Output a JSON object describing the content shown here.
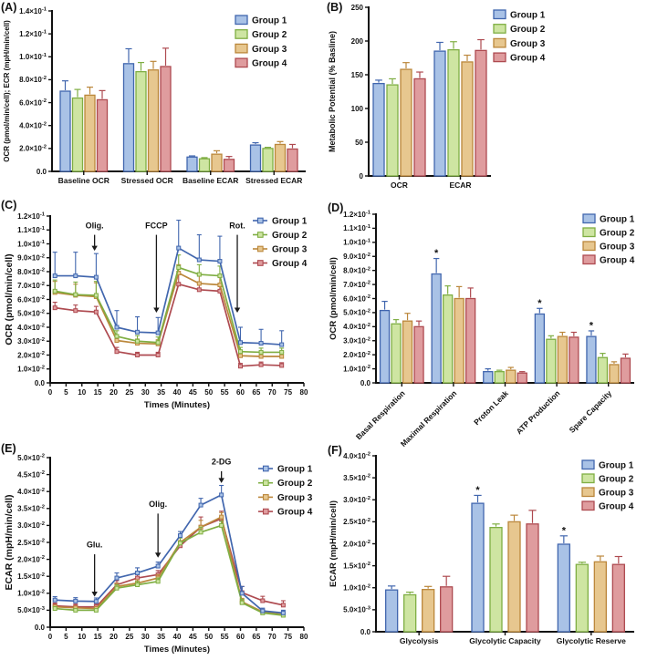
{
  "groups": [
    {
      "label": "Group 1",
      "fill": "#a9c2e6",
      "stroke": "#4166ae",
      "text": "#2746a8"
    },
    {
      "label": "Group 2",
      "fill": "#cee5a2",
      "stroke": "#7fae43",
      "text": "#6ba32c"
    },
    {
      "label": "Group 3",
      "fill": "#e7c78f",
      "stroke": "#bb873b",
      "text": "#b97a1e"
    },
    {
      "label": "Group 4",
      "fill": "#df9c9e",
      "stroke": "#ae4a50",
      "text": "#ac3940"
    }
  ],
  "chart_data": [
    {
      "panel": "(A)",
      "type": "bar",
      "ylabel": "OCR (pmol/min/cell); ECR (mpH/min/cell)",
      "ylim": [
        0,
        0.14
      ],
      "yticks": [
        0,
        0.02,
        0.04,
        0.06,
        0.08,
        0.1,
        0.12,
        0.14
      ],
      "ytick_labels": [
        "0.0",
        "2.0×10^-2",
        "4.0×10^-2",
        "6.0×10^-2",
        "8.0×10^-2",
        "1.0×10^-1",
        "1.2×10^-1",
        "1.4×10^-1"
      ],
      "categories": [
        "Baseline OCR",
        "Stressed OCR",
        "Baseline ECAR",
        "Stressed ECAR"
      ],
      "series": [
        {
          "name": "Group 1",
          "values": [
            0.07,
            0.094,
            0.0125,
            0.023
          ],
          "errors": [
            0.009,
            0.013,
            0.001,
            0.002
          ]
        },
        {
          "name": "Group 2",
          "values": [
            0.064,
            0.087,
            0.011,
            0.02
          ],
          "errors": [
            0.0075,
            0.008,
            0.001,
            0.001
          ]
        },
        {
          "name": "Group 3",
          "values": [
            0.0665,
            0.0885,
            0.015,
            0.0235
          ],
          "errors": [
            0.007,
            0.0075,
            0.003,
            0.0025
          ]
        },
        {
          "name": "Group 4",
          "values": [
            0.0625,
            0.0915,
            0.0105,
            0.0195
          ],
          "errors": [
            0.008,
            0.016,
            0.0025,
            0.004
          ]
        }
      ],
      "stars": []
    },
    {
      "panel": "(B)",
      "type": "bar",
      "ylabel": "Metabolic Potential (% Basline)",
      "ylim": [
        0,
        250
      ],
      "yticks": [
        0,
        50,
        100,
        150,
        200,
        250
      ],
      "ytick_labels": [
        "0",
        "50",
        "100",
        "150",
        "200",
        "250"
      ],
      "categories": [
        "OCR",
        "ECAR"
      ],
      "series": [
        {
          "name": "Group 1",
          "values": [
            137,
            185
          ],
          "errors": [
            5,
            13
          ]
        },
        {
          "name": "Group 2",
          "values": [
            135,
            187
          ],
          "errors": [
            9,
            12
          ]
        },
        {
          "name": "Group 3",
          "values": [
            158,
            169
          ],
          "errors": [
            10,
            10
          ]
        },
        {
          "name": "Group 4",
          "values": [
            144,
            186
          ],
          "errors": [
            10,
            16
          ]
        }
      ],
      "stars": []
    },
    {
      "panel": "(C)",
      "type": "line",
      "ylabel": "OCR (pmol/min/cell)",
      "xlabel": "Times (Minutes)",
      "ylim": [
        0,
        0.12
      ],
      "xlim": [
        0,
        80
      ],
      "yticks": [
        0,
        0.01,
        0.02,
        0.03,
        0.04,
        0.05,
        0.06,
        0.07,
        0.08,
        0.09,
        0.1,
        0.11,
        0.12
      ],
      "ytick_labels": [
        "0.0",
        "1.0×10^-2",
        "2.0×10^-2",
        "3.0×10^-2",
        "4.0×10^-2",
        "5.0×10^-2",
        "6.0×10^-2",
        "7.0×10^-2",
        "8.0×10^-2",
        "9.0×10^-2",
        "1.0×10^-1",
        "1.1×10^-1",
        "1.2×10^-1"
      ],
      "xticks": [
        0,
        5,
        10,
        15,
        20,
        25,
        30,
        35,
        40,
        45,
        50,
        55,
        60,
        65,
        70,
        75,
        80
      ],
      "x": [
        1.5,
        8,
        14.5,
        21,
        27.5,
        34,
        40.5,
        47,
        53.5,
        60,
        66.5,
        73
      ],
      "series": [
        {
          "name": "Group 1",
          "values": [
            0.077,
            0.077,
            0.076,
            0.04,
            0.0365,
            0.036,
            0.097,
            0.0885,
            0.0875,
            0.029,
            0.0285,
            0.0275
          ],
          "errors": [
            0.017,
            0.017,
            0.017,
            0.012,
            0.011,
            0.011,
            0.02,
            0.018,
            0.018,
            0.011,
            0.01,
            0.01
          ]
        },
        {
          "name": "Group 2",
          "values": [
            0.066,
            0.0635,
            0.063,
            0.0335,
            0.03,
            0.029,
            0.083,
            0.078,
            0.077,
            0.0225,
            0.022,
            0.022
          ],
          "errors": [
            0.008,
            0.009,
            0.01,
            0.004,
            0.004,
            0.004,
            0.009,
            0.007,
            0.007,
            0.003,
            0.003,
            0.003
          ]
        },
        {
          "name": "Group 3",
          "values": [
            0.065,
            0.063,
            0.062,
            0.0305,
            0.0285,
            0.028,
            0.079,
            0.0715,
            0.0705,
            0.0195,
            0.019,
            0.019
          ],
          "errors": [
            0.008,
            0.008,
            0.01,
            0.003,
            0.003,
            0.003,
            0.006,
            0.006,
            0.006,
            0.003,
            0.003,
            0.003
          ]
        },
        {
          "name": "Group 4",
          "values": [
            0.054,
            0.052,
            0.051,
            0.0225,
            0.02,
            0.02,
            0.071,
            0.067,
            0.066,
            0.012,
            0.013,
            0.0125
          ],
          "errors": [
            0.004,
            0.004,
            0.004,
            0.003,
            0.002,
            0.002,
            0.007,
            0.005,
            0.005,
            0.002,
            0.002,
            0.002
          ]
        }
      ],
      "annotations": [
        {
          "label": "Olig.",
          "x": 14,
          "label_y": 0.111,
          "arrow_from": 0.1065,
          "arrow_to": 0.095
        },
        {
          "label": "FCCP",
          "x": 33.5,
          "label_y": 0.111,
          "arrow_from": 0.1065,
          "arrow_to": 0.0505
        },
        {
          "label": "Rot.",
          "x": 59,
          "label_y": 0.111,
          "arrow_from": 0.1065,
          "arrow_to": 0.0505
        }
      ]
    },
    {
      "panel": "(D)",
      "type": "bar",
      "ylabel": "OCR (pmol/min/cell)",
      "ylim": [
        0,
        0.12
      ],
      "yticks": [
        0,
        0.01,
        0.02,
        0.03,
        0.04,
        0.05,
        0.06,
        0.07,
        0.08,
        0.09,
        0.1,
        0.11,
        0.12
      ],
      "ytick_labels": [
        "0.0",
        "1.0×10^-2",
        "2.0×10^-2",
        "3.0×10^-2",
        "4.0×10^-2",
        "5.0×10^-2",
        "6.0×10^-2",
        "7.0×10^-2",
        "8.0×10^-2",
        "9.0×10^-2",
        "1.0×10^-1",
        "1.1×10^-1",
        "1.2×10^-1"
      ],
      "categories": [
        "Basal Respiration",
        "Maximal Respiration",
        "Proton Leak",
        "ATP Production",
        "Spare Capacity"
      ],
      "series": [
        {
          "name": "Group 1",
          "values": [
            0.0515,
            0.0775,
            0.008,
            0.049,
            0.033
          ],
          "errors": [
            0.0065,
            0.011,
            0.002,
            0.004,
            0.004
          ]
        },
        {
          "name": "Group 2",
          "values": [
            0.042,
            0.0625,
            0.008,
            0.031,
            0.018
          ],
          "errors": [
            0.003,
            0.0065,
            0.001,
            0.0025,
            0.003
          ]
        },
        {
          "name": "Group 3",
          "values": [
            0.044,
            0.06,
            0.009,
            0.033,
            0.013
          ],
          "errors": [
            0.0055,
            0.0085,
            0.002,
            0.003,
            0.002
          ]
        },
        {
          "name": "Group 4",
          "values": [
            0.04,
            0.06,
            0.007,
            0.0325,
            0.0175
          ],
          "errors": [
            0.004,
            0.0075,
            0.001,
            0.0035,
            0.003
          ]
        }
      ],
      "stars": [
        {
          "category": 1,
          "series": 0,
          "symbol": "*"
        },
        {
          "category": 3,
          "series": 0,
          "symbol": "*"
        },
        {
          "category": 4,
          "series": 0,
          "symbol": "*"
        }
      ]
    },
    {
      "panel": "(E)",
      "type": "line",
      "ylabel": "ECAR (mpH/min/cell)",
      "xlabel": "Times (Minutes)",
      "ylim": [
        0,
        0.05
      ],
      "xlim": [
        0,
        80
      ],
      "yticks": [
        0,
        0.005,
        0.01,
        0.015,
        0.02,
        0.025,
        0.03,
        0.035,
        0.04,
        0.045,
        0.05
      ],
      "ytick_labels": [
        "0.0",
        "5.0×10^-3",
        "1.0×10^-2",
        "1.5×10^-2",
        "2.0×10^-2",
        "2.5×10^-2",
        "3.0×10^-2",
        "3.5×10^-2",
        "4.0×10^-2",
        "4.5×10^-2",
        "5.0×10^-2"
      ],
      "xticks": [
        0,
        5,
        10,
        15,
        20,
        25,
        30,
        35,
        40,
        45,
        50,
        55,
        60,
        65,
        70,
        75,
        80
      ],
      "x": [
        1.5,
        8,
        14.5,
        21,
        27.5,
        34,
        41,
        47.5,
        54,
        60.5,
        67,
        73.5
      ],
      "series": [
        {
          "name": "Group 1",
          "values": [
            0.008,
            0.0077,
            0.0076,
            0.0145,
            0.016,
            0.018,
            0.027,
            0.036,
            0.039,
            0.01,
            0.0048,
            0.0042
          ],
          "errors": [
            0.001,
            0.001,
            0.001,
            0.0015,
            0.0015,
            0.0012,
            0.0012,
            0.002,
            0.0028,
            0.002,
            0.0008,
            0.0008
          ]
        },
        {
          "name": "Group 2",
          "values": [
            0.0055,
            0.005,
            0.005,
            0.0115,
            0.0125,
            0.0135,
            0.0248,
            0.028,
            0.03,
            0.0072,
            0.0042,
            0.0035
          ],
          "errors": [
            0.0005,
            0.0005,
            0.0005,
            0.001,
            0.001,
            0.001,
            0.0015,
            0.0015,
            0.0012,
            0.001,
            0.0005,
            0.0005
          ]
        },
        {
          "name": "Group 3",
          "values": [
            0.006,
            0.0057,
            0.0055,
            0.012,
            0.013,
            0.0145,
            0.025,
            0.0295,
            0.0325,
            0.0075,
            0.0045,
            0.0037
          ],
          "errors": [
            0.0005,
            0.0005,
            0.0005,
            0.001,
            0.001,
            0.001,
            0.0015,
            0.002,
            0.0013,
            0.001,
            0.0006,
            0.0006
          ]
        },
        {
          "name": "Group 4",
          "values": [
            0.0063,
            0.006,
            0.006,
            0.0125,
            0.0145,
            0.0155,
            0.024,
            0.0295,
            0.032,
            0.0102,
            0.0078,
            0.0065
          ],
          "errors": [
            0.0008,
            0.0008,
            0.0008,
            0.0012,
            0.0012,
            0.0012,
            0.0015,
            0.003,
            0.0022,
            0.0018,
            0.0013,
            0.0013
          ]
        }
      ],
      "annotations": [
        {
          "label": "Glu.",
          "x": 14,
          "label_y": 0.0235,
          "arrow_from": 0.0215,
          "arrow_to": 0.009
        },
        {
          "label": "Olig.",
          "x": 34,
          "label_y": 0.0355,
          "arrow_from": 0.0335,
          "arrow_to": 0.0205
        },
        {
          "label": "2-DG",
          "x": 54,
          "label_y": 0.048,
          "arrow_from": 0.046,
          "arrow_to": 0.0425
        }
      ]
    },
    {
      "panel": "(F)",
      "type": "bar",
      "ylabel": "ECAR (mpH/min/cell)",
      "ylim": [
        0,
        0.04
      ],
      "yticks": [
        0,
        0.005,
        0.01,
        0.015,
        0.02,
        0.025,
        0.03,
        0.035,
        0.04
      ],
      "ytick_labels": [
        "0.0",
        "5.0×10^-3",
        "1.0×10^-2",
        "1.5×10^-2",
        "2.0×10^-2",
        "2.5×10^-2",
        "3.0×10^-2",
        "3.5×10^-2",
        "4.0×10^-2"
      ],
      "categories": [
        "Glycolysis",
        "Glycolytic Capacity",
        "Glycolytic Reserve"
      ],
      "series": [
        {
          "name": "Group 1",
          "values": [
            0.0095,
            0.0292,
            0.0199
          ],
          "errors": [
            0.0009,
            0.0018,
            0.0019
          ]
        },
        {
          "name": "Group 2",
          "values": [
            0.0084,
            0.0237,
            0.0153
          ],
          "errors": [
            0.0006,
            0.0008,
            0.0005
          ]
        },
        {
          "name": "Group 3",
          "values": [
            0.0096,
            0.025,
            0.0159
          ],
          "errors": [
            0.0007,
            0.0015,
            0.0013
          ]
        },
        {
          "name": "Group 4",
          "values": [
            0.0102,
            0.0245,
            0.0153
          ],
          "errors": [
            0.0024,
            0.0031,
            0.0018
          ]
        }
      ],
      "stars": [
        {
          "category": 1,
          "series": 0,
          "symbol": "*"
        },
        {
          "category": 2,
          "series": 0,
          "symbol": "*"
        }
      ]
    }
  ]
}
